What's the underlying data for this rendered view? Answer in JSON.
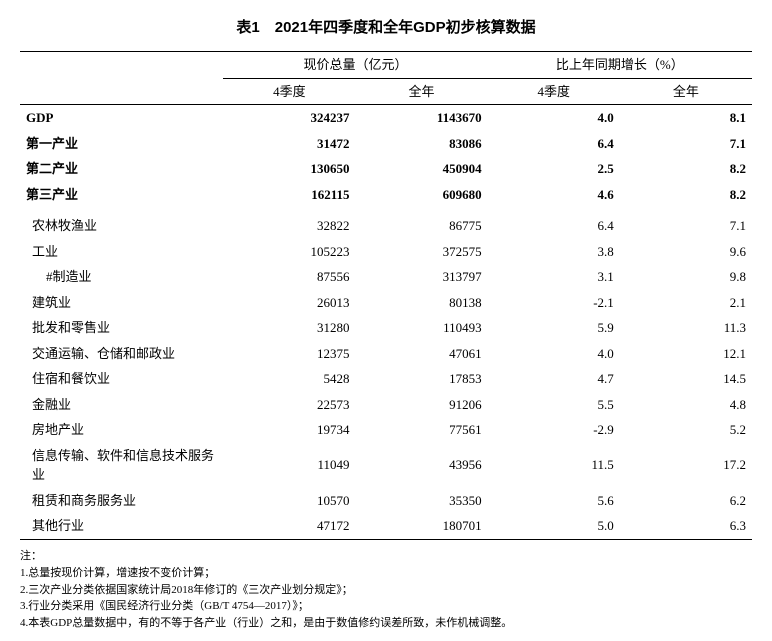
{
  "title": "表1　2021年四季度和全年GDP初步核算数据",
  "group_headers": {
    "g1": "现价总量（亿元）",
    "g2": "比上年同期增长（%）"
  },
  "sub_headers": {
    "c1": "4季度",
    "c2": "全年",
    "c3": "4季度",
    "c4": "全年"
  },
  "bold_rows": [
    {
      "label": "GDP",
      "indent": 0,
      "v": [
        "324237",
        "1143670",
        "4.0",
        "8.1"
      ]
    },
    {
      "label": "第一产业",
      "indent": 0,
      "v": [
        "31472",
        "83086",
        "6.4",
        "7.1"
      ]
    },
    {
      "label": "第二产业",
      "indent": 0,
      "v": [
        "130650",
        "450904",
        "2.5",
        "8.2"
      ]
    },
    {
      "label": "第三产业",
      "indent": 0,
      "v": [
        "162115",
        "609680",
        "4.6",
        "8.2"
      ]
    }
  ],
  "detail_rows": [
    {
      "label": "农林牧渔业",
      "indent": 1,
      "v": [
        "32822",
        "86775",
        "6.4",
        "7.1"
      ]
    },
    {
      "label": "工业",
      "indent": 1,
      "v": [
        "105223",
        "372575",
        "3.8",
        "9.6"
      ]
    },
    {
      "label": "#制造业",
      "indent": 2,
      "v": [
        "87556",
        "313797",
        "3.1",
        "9.8"
      ]
    },
    {
      "label": "建筑业",
      "indent": 1,
      "v": [
        "26013",
        "80138",
        "-2.1",
        "2.1"
      ]
    },
    {
      "label": "批发和零售业",
      "indent": 1,
      "v": [
        "31280",
        "110493",
        "5.9",
        "11.3"
      ]
    },
    {
      "label": "交通运输、仓储和邮政业",
      "indent": 1,
      "v": [
        "12375",
        "47061",
        "4.0",
        "12.1"
      ]
    },
    {
      "label": "住宿和餐饮业",
      "indent": 1,
      "v": [
        "5428",
        "17853",
        "4.7",
        "14.5"
      ]
    },
    {
      "label": "金融业",
      "indent": 1,
      "v": [
        "22573",
        "91206",
        "5.5",
        "4.8"
      ]
    },
    {
      "label": "房地产业",
      "indent": 1,
      "v": [
        "19734",
        "77561",
        "-2.9",
        "5.2"
      ]
    },
    {
      "label": "信息传输、软件和信息技术服务业",
      "indent": 1,
      "v": [
        "11049",
        "43956",
        "11.5",
        "17.2"
      ]
    },
    {
      "label": "租赁和商务服务业",
      "indent": 1,
      "v": [
        "10570",
        "35350",
        "5.6",
        "6.2"
      ]
    },
    {
      "label": "其他行业",
      "indent": 1,
      "v": [
        "47172",
        "180701",
        "5.0",
        "6.3"
      ]
    }
  ],
  "notes": {
    "head": "注：",
    "items": [
      "1.总量按现价计算，增速按不变价计算；",
      "2.三次产业分类依据国家统计局2018年修订的《三次产业划分规定》；",
      "3.行业分类采用《国民经济行业分类（GB/T 4754—2017）》；",
      "4.本表GDP总量数据中，有的不等于各产业（行业）之和，是由于数值修约误差所致，未作机械调整。"
    ]
  }
}
